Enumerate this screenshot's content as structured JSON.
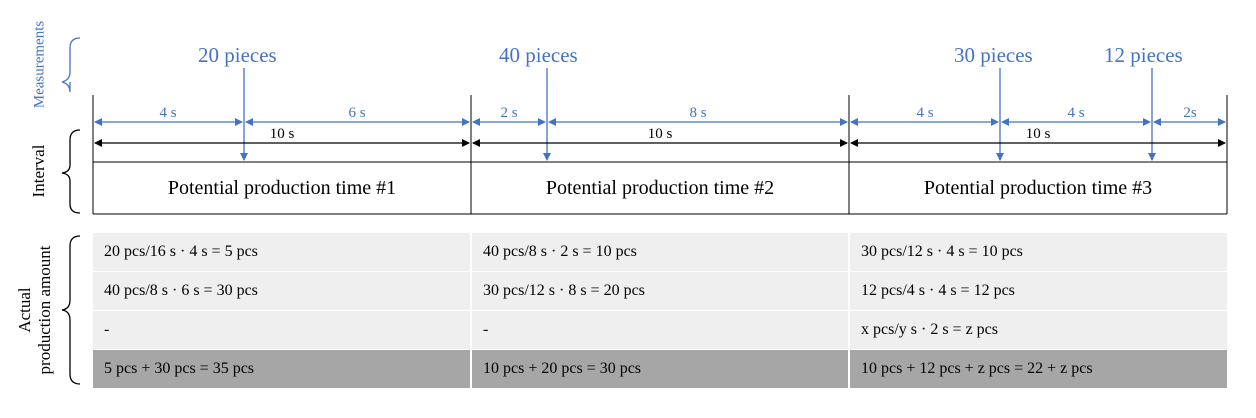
{
  "labels": {
    "measurements": "Measurements",
    "interval": "Interval",
    "actual_line1": "Actual",
    "actual_line2": "production amount"
  },
  "measurements": [
    "20 pieces",
    "40 pieces",
    "30 pieces",
    "12 pieces"
  ],
  "durations_blue": [
    "4 s",
    "6 s",
    "2 s",
    "8 s",
    "4 s",
    "4 s",
    "2s"
  ],
  "durations_black": [
    "10 s",
    "10 s",
    "10 s"
  ],
  "intervals": [
    "Potential production time #1",
    "Potential production time #2",
    "Potential production time #3"
  ],
  "table": [
    [
      "20 pcs/16 s  · 4 s  = 5 pcs",
      "40 pcs/8 s  · 2 s  = 10 pcs",
      "30 pcs/12 s  · 4 s  = 10 pcs"
    ],
    [
      "40 pcs/8 s  · 6 s  = 30 pcs",
      "30 pcs/12 s  · 8 s  = 20 pcs",
      "12 pcs/4 s  · 4 s  = 12 pcs"
    ],
    [
      "-",
      "-",
      "x pcs/y s  · 2 s  = z pcs"
    ],
    [
      "5 pcs +  30 pcs = 35 pcs",
      "10 pcs +  20 pcs = 30 pcs",
      "10 pcs +  12 pcs +  z pcs = 22 + z pcs"
    ]
  ],
  "colors": {
    "accent": "#4472c4",
    "row_light": "#efefef",
    "row_dark": "#a6a6a6"
  }
}
